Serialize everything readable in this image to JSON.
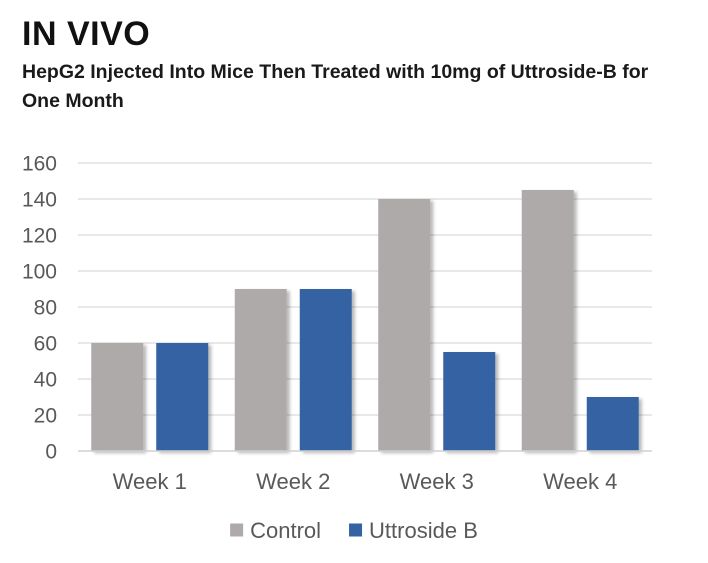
{
  "chart_data": {
    "type": "bar",
    "title": "IN VIVO",
    "subtitle": "HepG2 Injected Into Mice Then Treated with 10mg of Uttroside-B for One Month",
    "categories": [
      "Week 1",
      "Week 2",
      "Week 3",
      "Week 4"
    ],
    "series": [
      {
        "name": "Control",
        "values": [
          60,
          90,
          140,
          145
        ],
        "color": "#aeaaaa"
      },
      {
        "name": "Uttroside B",
        "values": [
          60,
          90,
          55,
          30
        ],
        "color": "#3462a3"
      }
    ],
    "ylim": [
      0,
      160
    ],
    "yticks": [
      0,
      20,
      40,
      60,
      80,
      100,
      120,
      140,
      160
    ],
    "grid": true,
    "legend_position": "bottom",
    "gridline_color": "#d9d9d9",
    "axis_color": "#d0d0d0"
  }
}
